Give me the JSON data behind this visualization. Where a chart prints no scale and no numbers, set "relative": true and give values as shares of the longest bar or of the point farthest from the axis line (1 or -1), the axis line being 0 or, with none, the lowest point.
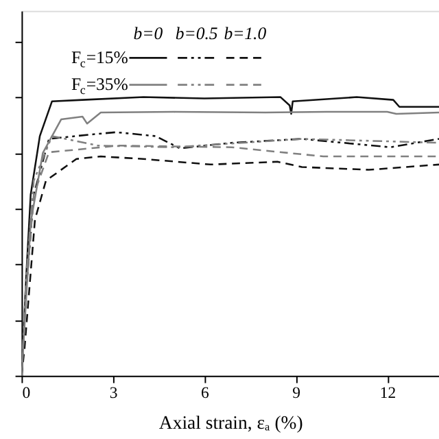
{
  "chart_data": {
    "type": "line",
    "relative": true,
    "xlabel": "Axial strain, εₐ (%)",
    "xlim": [
      0,
      13.7
    ],
    "xticks": [
      0,
      3,
      6,
      9,
      12
    ],
    "annotations": [
      "b=0",
      "b=0.5",
      "b=1.0",
      "F$_{c}$=15%",
      "F$_{c}$=35%"
    ],
    "grid": false,
    "series": [
      {
        "color": "#111111",
        "line_style": "solid",
        "x": [
          0,
          0.15,
          0.3,
          0.6,
          1.0,
          2,
          4,
          6,
          8.5,
          8.8,
          8.85,
          8.9,
          11,
          12.2,
          12.4,
          13.7
        ],
        "values": [
          0,
          0.35,
          0.65,
          0.86,
          0.985,
          0.99,
          1.0,
          0.995,
          1.0,
          0.97,
          0.94,
          0.985,
          1.0,
          0.99,
          0.965,
          0.965
        ]
      },
      {
        "color": "#111111",
        "line_style": "dashdot",
        "x": [
          0,
          0.15,
          0.4,
          0.9,
          2.2,
          3.1,
          4.4,
          5.2,
          6.9,
          9.2,
          12.1,
          13.7
        ],
        "values": [
          0,
          0.3,
          0.65,
          0.85,
          0.865,
          0.874,
          0.86,
          0.816,
          0.836,
          0.85,
          0.82,
          0.85
        ]
      },
      {
        "color": "#111111",
        "line_style": "dashed",
        "x": [
          0,
          0.1,
          0.44,
          0.8,
          1.8,
          2.6,
          4,
          6.2,
          8.4,
          9.2,
          11.4,
          13.7
        ],
        "values": [
          0,
          0.1,
          0.56,
          0.7,
          0.778,
          0.787,
          0.778,
          0.758,
          0.768,
          0.749,
          0.739,
          0.758
        ]
      },
      {
        "color": "#808080",
        "line_style": "solid",
        "x": [
          0,
          0.3,
          0.7,
          1.3,
          2,
          2.15,
          2.6,
          5,
          8,
          10,
          12,
          12.3,
          13.7
        ],
        "values": [
          0,
          0.55,
          0.8,
          0.92,
          0.93,
          0.905,
          0.945,
          0.947,
          0.945,
          0.947,
          0.947,
          0.94,
          0.945
        ]
      },
      {
        "color": "#808080",
        "line_style": "dashdot",
        "x": [
          0,
          0.15,
          0.4,
          1.0,
          2.5,
          5,
          9.2,
          13.7
        ],
        "values": [
          0,
          0.35,
          0.7,
          0.86,
          0.826,
          0.82,
          0.85,
          0.836
        ]
      },
      {
        "color": "#808080",
        "line_style": "dashed",
        "x": [
          0,
          0.15,
          0.4,
          0.9,
          3.2,
          6.9,
          9.9,
          13.7
        ],
        "values": [
          0,
          0.3,
          0.65,
          0.802,
          0.826,
          0.82,
          0.787,
          0.787
        ]
      }
    ]
  }
}
